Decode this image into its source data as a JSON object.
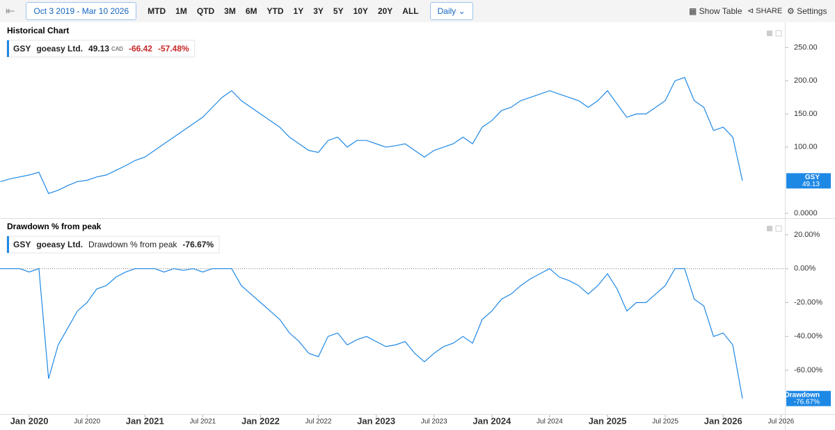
{
  "toolbar": {
    "date_range": "Oct 3 2019 - Mar 10 2026",
    "ranges": [
      "MTD",
      "1M",
      "QTD",
      "3M",
      "6M",
      "YTD",
      "1Y",
      "3Y",
      "5Y",
      "10Y",
      "20Y",
      "ALL"
    ],
    "interval": "Daily",
    "show_table": "Show Table",
    "share": "SHARE",
    "settings": "Settings"
  },
  "chart_data": [
    {
      "type": "line",
      "title": "Historical Chart",
      "legend": {
        "ticker": "GSY",
        "name": "goeasy Ltd.",
        "currency": "CAD",
        "change": -66.42,
        "change_pct": "-57.48%"
      },
      "x": [
        "2019-10",
        "2019-11",
        "2019-12",
        "2020-01",
        "2020-02",
        "2020-03",
        "2020-04",
        "2020-05",
        "2020-06",
        "2020-07",
        "2020-08",
        "2020-09",
        "2020-10",
        "2020-11",
        "2020-12",
        "2021-01",
        "2021-02",
        "2021-03",
        "2021-04",
        "2021-05",
        "2021-06",
        "2021-07",
        "2021-08",
        "2021-09",
        "2021-10",
        "2021-11",
        "2021-12",
        "2022-01",
        "2022-02",
        "2022-03",
        "2022-04",
        "2022-05",
        "2022-06",
        "2022-07",
        "2022-08",
        "2022-09",
        "2022-10",
        "2022-11",
        "2022-12",
        "2023-01",
        "2023-02",
        "2023-03",
        "2023-04",
        "2023-05",
        "2023-06",
        "2023-07",
        "2023-08",
        "2023-09",
        "2023-10",
        "2023-11",
        "2023-12",
        "2024-01",
        "2024-02",
        "2024-03",
        "2024-04",
        "2024-05",
        "2024-06",
        "2024-07",
        "2024-08",
        "2024-09",
        "2024-10",
        "2024-11",
        "2024-12",
        "2025-01",
        "2025-02",
        "2025-03",
        "2025-04",
        "2025-05",
        "2025-06",
        "2025-07",
        "2025-08",
        "2025-09",
        "2025-10",
        "2025-11",
        "2025-12",
        "2026-01",
        "2026-02",
        "2026-03"
      ],
      "series": [
        {
          "name": "GSY",
          "color": "#1e88e5",
          "values": [
            48,
            52,
            55,
            58,
            62,
            30,
            35,
            42,
            48,
            50,
            55,
            58,
            65,
            72,
            80,
            85,
            95,
            105,
            115,
            125,
            135,
            145,
            160,
            175,
            185,
            170,
            160,
            150,
            140,
            130,
            115,
            105,
            95,
            92,
            110,
            115,
            100,
            110,
            110,
            105,
            100,
            102,
            105,
            95,
            85,
            95,
            100,
            105,
            115,
            105,
            130,
            140,
            155,
            160,
            170,
            175,
            180,
            185,
            180,
            175,
            170,
            160,
            170,
            185,
            165,
            145,
            150,
            150,
            160,
            170,
            200,
            205,
            170,
            160,
            125,
            130,
            115,
            49.13
          ]
        }
      ],
      "ylim": [
        -5,
        282
      ],
      "yticks": [
        {
          "value": 0,
          "label": "0.0000"
        },
        {
          "value": 100,
          "label": "100.00"
        },
        {
          "value": 150,
          "label": "150.00"
        },
        {
          "value": 200,
          "label": "200.00"
        },
        {
          "value": 250,
          "label": "250.00"
        }
      ]
    },
    {
      "type": "line",
      "title": "Drawdown % from peak",
      "legend": {
        "ticker": "GSY",
        "name": "goeasy Ltd.",
        "value": "-76.67%"
      },
      "x": [
        "2019-10",
        "2019-11",
        "2019-12",
        "2020-01",
        "2020-02",
        "2020-03",
        "2020-04",
        "2020-05",
        "2020-06",
        "2020-07",
        "2020-08",
        "2020-09",
        "2020-10",
        "2020-11",
        "2020-12",
        "2021-01",
        "2021-02",
        "2021-03",
        "2021-04",
        "2021-05",
        "2021-06",
        "2021-07",
        "2021-08",
        "2021-09",
        "2021-10",
        "2021-11",
        "2021-12",
        "2022-01",
        "2022-02",
        "2022-03",
        "2022-04",
        "2022-05",
        "2022-06",
        "2022-07",
        "2022-08",
        "2022-09",
        "2022-10",
        "2022-11",
        "2022-12",
        "2023-01",
        "2023-02",
        "2023-03",
        "2023-04",
        "2023-05",
        "2023-06",
        "2023-07",
        "2023-08",
        "2023-09",
        "2023-10",
        "2023-11",
        "2023-12",
        "2024-01",
        "2024-02",
        "2024-03",
        "2024-04",
        "2024-05",
        "2024-06",
        "2024-07",
        "2024-08",
        "2024-09",
        "2024-10",
        "2024-11",
        "2024-12",
        "2025-01",
        "2025-02",
        "2025-03",
        "2025-04",
        "2025-05",
        "2025-06",
        "2025-07",
        "2025-08",
        "2025-09",
        "2025-10",
        "2025-11",
        "2025-12",
        "2026-01",
        "2026-02",
        "2026-03"
      ],
      "series": [
        {
          "name": "Drawdown",
          "color": "#1e88e5",
          "values": [
            0,
            0,
            0,
            -2,
            0,
            -65,
            -45,
            -35,
            -25,
            -20,
            -12,
            -10,
            -5,
            -2,
            0,
            0,
            0,
            -2,
            0,
            -1,
            0,
            -2,
            0,
            0,
            0,
            -10,
            -15,
            -20,
            -25,
            -30,
            -38,
            -43,
            -50,
            -52,
            -40,
            -38,
            -45,
            -42,
            -40,
            -43,
            -46,
            -45,
            -43,
            -50,
            -55,
            -50,
            -46,
            -44,
            -40,
            -44,
            -30,
            -25,
            -18,
            -15,
            -10,
            -6,
            -3,
            0,
            -5,
            -7,
            -10,
            -15,
            -10,
            -3,
            -12,
            -25,
            -20,
            -20,
            -15,
            -10,
            0,
            0,
            -18,
            -22,
            -40,
            -38,
            -45,
            -76.67
          ]
        }
      ],
      "ylim": [
        -85,
        29
      ],
      "yticks": [
        {
          "value": -60,
          "label": "-60.00%"
        },
        {
          "value": -40,
          "label": "-40.00%"
        },
        {
          "value": -20,
          "label": "-20.00%"
        },
        {
          "value": 0,
          "label": "0.00%"
        },
        {
          "value": 20,
          "label": "20.00%"
        }
      ],
      "xticks": [
        {
          "value": "2020-01",
          "label": "Jan 2020"
        },
        {
          "value": "2020-07",
          "label": "Jul 2020"
        },
        {
          "value": "2021-01",
          "label": "Jan 2021"
        },
        {
          "value": "2021-07",
          "label": "Jul 2021"
        },
        {
          "value": "2022-01",
          "label": "Jan 2022"
        },
        {
          "value": "2022-07",
          "label": "Jul 2022"
        },
        {
          "value": "2023-01",
          "label": "Jan 2023"
        },
        {
          "value": "2023-07",
          "label": "Jul 2023"
        },
        {
          "value": "2024-01",
          "label": "Jan 2024"
        },
        {
          "value": "2024-07",
          "label": "Jul 2024"
        },
        {
          "value": "2025-01",
          "label": "Jan 2025"
        },
        {
          "value": "2025-07",
          "label": "Jul 2025"
        },
        {
          "value": "2026-01",
          "label": "Jan 2026"
        },
        {
          "value": "2026-07",
          "label": "Jul 2026"
        }
      ]
    }
  ]
}
